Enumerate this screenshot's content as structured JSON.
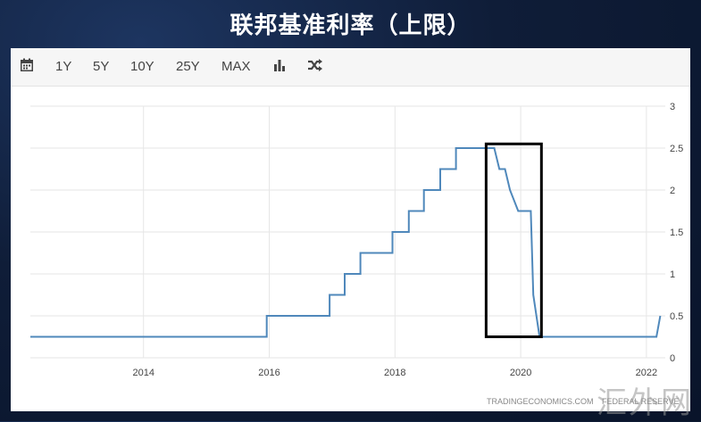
{
  "title": "联邦基准利率（上限）",
  "toolbar": {
    "calendar_icon": "calendar-icon",
    "ranges": [
      "1Y",
      "5Y",
      "10Y",
      "25Y",
      "MAX"
    ],
    "bar_chart_icon": "bar-chart-icon",
    "shuffle_icon": "shuffle-icon"
  },
  "credit_left": "TRADINGECONOMICS.COM",
  "credit_right": "FEDERAL RESERVE",
  "watermark": "汇外网",
  "colors": {
    "line": "#4f88bb",
    "grid": "#e6e6e6",
    "highlight_box": "#000000"
  },
  "chart_data": {
    "type": "line",
    "title": "联邦基准利率（上限）",
    "xlabel": "",
    "ylabel": "",
    "x_ticks": [
      "2014",
      "2016",
      "2018",
      "2020",
      "2022"
    ],
    "y_ticks": [
      "0",
      "0.5",
      "1",
      "1.5",
      "2",
      "2.5",
      "3"
    ],
    "xlim": [
      2012.2,
      2022.3
    ],
    "ylim": [
      0,
      3
    ],
    "y_axis_position": "right",
    "grid": true,
    "series": [
      {
        "points": [
          [
            2012.2,
            0.25
          ],
          [
            2015.96,
            0.25
          ],
          [
            2015.96,
            0.5
          ],
          [
            2016.96,
            0.5
          ],
          [
            2016.96,
            0.75
          ],
          [
            2017.2,
            0.75
          ],
          [
            2017.2,
            1.0
          ],
          [
            2017.45,
            1.0
          ],
          [
            2017.45,
            1.25
          ],
          [
            2017.96,
            1.25
          ],
          [
            2017.96,
            1.5
          ],
          [
            2018.22,
            1.5
          ],
          [
            2018.22,
            1.75
          ],
          [
            2018.46,
            1.75
          ],
          [
            2018.46,
            2.0
          ],
          [
            2018.72,
            2.0
          ],
          [
            2018.72,
            2.25
          ],
          [
            2018.97,
            2.25
          ],
          [
            2018.97,
            2.5
          ],
          [
            2019.58,
            2.5
          ],
          [
            2019.66,
            2.25
          ],
          [
            2019.75,
            2.25
          ],
          [
            2019.83,
            2.0
          ],
          [
            2019.96,
            1.75
          ],
          [
            2020.16,
            1.75
          ],
          [
            2020.2,
            0.75
          ],
          [
            2020.3,
            0.25
          ],
          [
            2022.16,
            0.25
          ],
          [
            2022.22,
            0.5
          ]
        ]
      }
    ],
    "highlight_box": {
      "x_range": [
        2019.45,
        2020.33
      ],
      "y_range": [
        0.25,
        2.55
      ]
    }
  }
}
